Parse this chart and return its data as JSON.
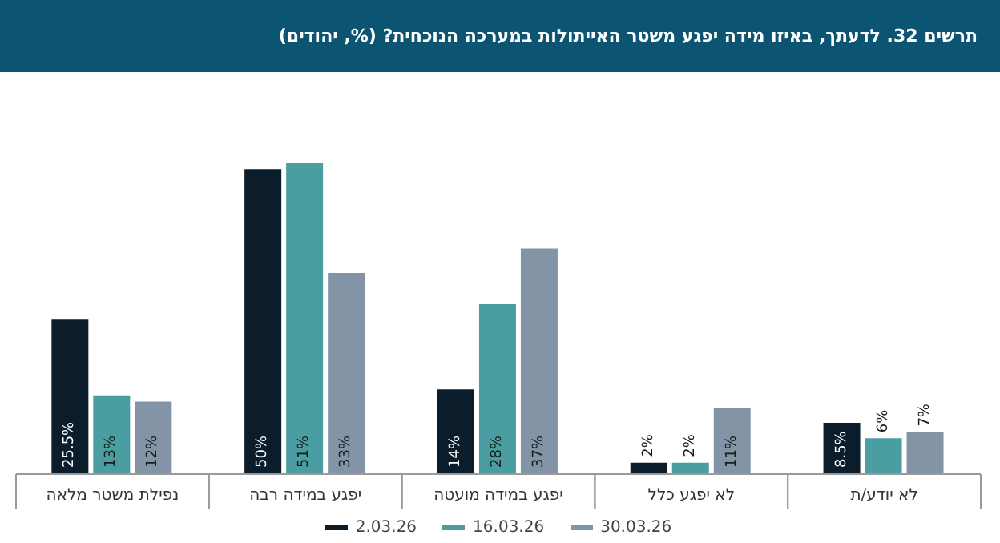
{
  "chart_data": {
    "type": "bar",
    "title": "תרשים 32. לדעתך, באיזו מידה יפגע משטר האייתולות במערכה הנוכחית? (%, יהודים)",
    "categories": [
      "נפילת משטר מלאה",
      "יפגע במידה רבה",
      "יפגע במידה מועטה",
      "לא יפגע כלל",
      "לא יודע/ת"
    ],
    "series": [
      {
        "name": "2.03.26",
        "color": "#0b1c2a",
        "values": [
          25.5,
          50,
          14,
          2,
          8.5
        ],
        "value_labels": [
          "25.5%",
          "50%",
          "14%",
          "2%",
          "8.5%"
        ]
      },
      {
        "name": "16.03.26",
        "color": "#4a9da0",
        "values": [
          13,
          51,
          28,
          2,
          6
        ],
        "value_labels": [
          "13%",
          "51%",
          "28%",
          "2%",
          "6%"
        ]
      },
      {
        "name": "30.03.26",
        "color": "#8394a6",
        "values": [
          12,
          33,
          37,
          11,
          7
        ],
        "value_labels": [
          "12%",
          "33%",
          "37%",
          "11%",
          "7%"
        ]
      }
    ],
    "tick_labels": "x",
    "legend": "bottom"
  }
}
